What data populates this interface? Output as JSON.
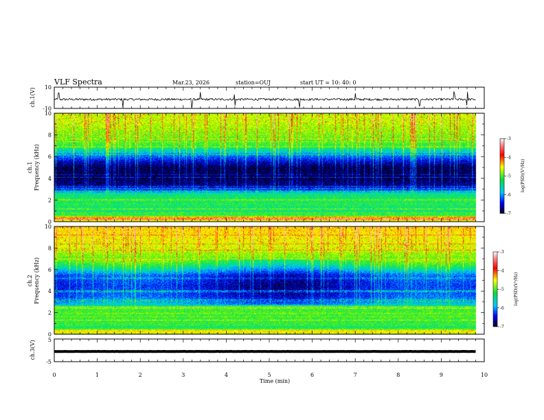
{
  "header": {
    "title": "VLF Spectra",
    "date": "Mar.23, 2026",
    "station": "station=OUJ",
    "start": "start UT =   10: 40: 0"
  },
  "chart_data": [
    {
      "type": "line",
      "name": "ch1-waveform",
      "ylabel": "ch.1(V)",
      "ylim": [
        -10,
        10
      ],
      "tick_labels": [
        "10",
        "-10"
      ],
      "xlim": [
        0,
        10
      ],
      "data_extent_min": 9.8,
      "baseline_v": -1.5,
      "noise_amplitude_v": 1.0,
      "spike_times_min": [
        0.1,
        1.6,
        3.2,
        3.4,
        4.2,
        5.7,
        7.0,
        8.5,
        9.3,
        9.6
      ]
    },
    {
      "type": "heatmap",
      "name": "ch1-spectrogram",
      "ylabel": "ch.1\nFrequency (kHz)",
      "ylim": [
        0,
        10
      ],
      "yticks": [
        0,
        2,
        4,
        6,
        8,
        10
      ],
      "xlim": [
        0,
        10
      ],
      "data_extent_min": 9.8,
      "colorbar": {
        "label": "log(PSD)(V²/Hz)",
        "ticks": [
          -3,
          -4,
          -5,
          -6,
          -7
        ],
        "range": [
          -7,
          -3
        ]
      },
      "band_profile_khz": [
        [
          0,
          -4.6
        ],
        [
          0.3,
          -3.6
        ],
        [
          0.6,
          -5.0
        ],
        [
          1.0,
          -5.2
        ],
        [
          2.0,
          -5.1
        ],
        [
          2.6,
          -5.3
        ],
        [
          2.9,
          -6.1
        ],
        [
          3.3,
          -6.7
        ],
        [
          4.0,
          -6.9
        ],
        [
          5.0,
          -6.9
        ],
        [
          5.5,
          -6.6
        ],
        [
          6.0,
          -6.1
        ],
        [
          6.5,
          -5.6
        ],
        [
          7.0,
          -5.0
        ],
        [
          8.0,
          -4.7
        ],
        [
          9.0,
          -4.5
        ],
        [
          10.0,
          -4.4
        ]
      ]
    },
    {
      "type": "heatmap",
      "name": "ch2-spectrogram",
      "ylabel": "ch.2\nFrequency (kHz)",
      "ylim": [
        0,
        10
      ],
      "yticks": [
        0,
        2,
        4,
        6,
        8,
        10
      ],
      "xlim": [
        0,
        10
      ],
      "data_extent_min": 9.8,
      "colorbar": {
        "label": "log(PSD)(V²/Hz)",
        "ticks": [
          -3,
          -4,
          -5,
          -6,
          -7
        ],
        "range": [
          -7,
          -3
        ]
      },
      "band_profile_khz": [
        [
          0,
          -4.8
        ],
        [
          0.3,
          -4.0
        ],
        [
          0.6,
          -5.2
        ],
        [
          1.0,
          -5.0
        ],
        [
          2.0,
          -4.9
        ],
        [
          2.6,
          -5.0
        ],
        [
          2.8,
          -5.8
        ],
        [
          3.5,
          -6.3
        ],
        [
          4.5,
          -6.5
        ],
        [
          5.5,
          -6.3
        ],
        [
          6.0,
          -5.7
        ],
        [
          6.5,
          -5.2
        ],
        [
          7.0,
          -4.8
        ],
        [
          8.0,
          -4.4
        ],
        [
          9.0,
          -4.2
        ],
        [
          10.0,
          -4.0
        ]
      ]
    },
    {
      "type": "line",
      "name": "ch3-waveform",
      "ylabel": "ch.3(V)",
      "ylim": [
        -5,
        5
      ],
      "tick_labels": [
        "5",
        "-5"
      ],
      "xlim": [
        0,
        10
      ],
      "data_extent_min": 9.8,
      "baseline_v": -0.5,
      "noise_amplitude_v": 0.3
    }
  ],
  "x_axis": {
    "label": "Time (min)",
    "ticks": [
      0,
      1,
      2,
      3,
      4,
      5,
      6,
      7,
      8,
      9,
      10
    ]
  }
}
